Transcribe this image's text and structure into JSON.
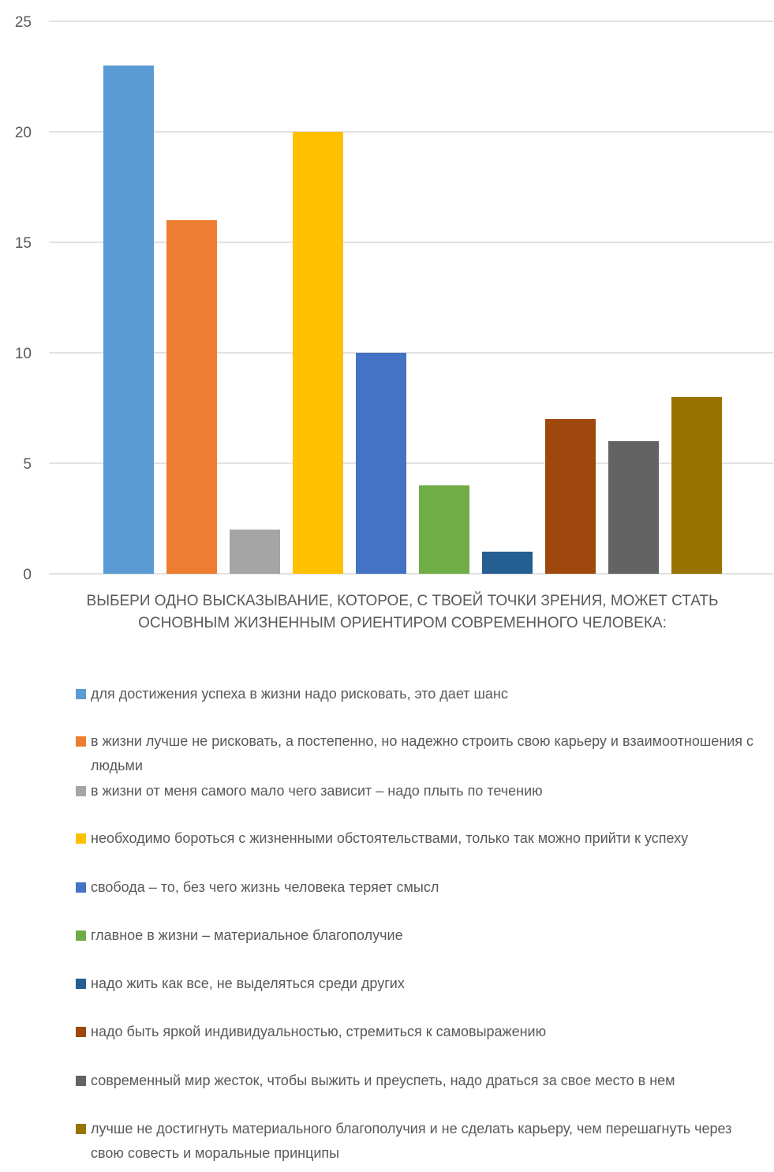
{
  "chart_data": {
    "type": "bar",
    "xlabel": "ВЫБЕРИ ОДНО ВЫСКАЗЫВАНИЕ, КОТОРОЕ, С ТВОЕЙ ТОЧКИ ЗРЕНИЯ, МОЖЕТ СТАТЬ\nОСНОВНЫМ ЖИЗНЕННЫМ ОРИЕНТИРОМ СОВРЕМЕННОГО ЧЕЛОВЕКА:",
    "ylim": [
      0,
      25
    ],
    "yticks": [
      0,
      5,
      10,
      15,
      20,
      25
    ],
    "grid": true,
    "legend_position": "bottom",
    "series": [
      {
        "name": "для достижения успеха в жизни надо рисковать, это дает шанс",
        "value": 23,
        "color": "#5B9BD5"
      },
      {
        "name": "в жизни лучше не рисковать, а постепенно, но надежно строить свою карьеру и взаимоотношения с людьми",
        "value": 16,
        "color": "#ED7D31"
      },
      {
        "name": "в жизни от меня самого мало чего зависит – надо плыть по течению",
        "value": 2,
        "color": "#A5A5A5"
      },
      {
        "name": "необходимо бороться с жизненными обстоятельствами, только так можно прийти к успеху",
        "value": 20,
        "color": "#FFC000"
      },
      {
        "name": "свобода – то, без чего жизнь человека теряет смысл",
        "value": 10,
        "color": "#4472C4"
      },
      {
        "name": "главное в жизни – материальное благополучие",
        "value": 4,
        "color": "#70AD47"
      },
      {
        "name": "надо жить как все, не выделяться среди других",
        "value": 1,
        "color": "#255E91"
      },
      {
        "name": "надо быть яркой индивидуальностью, стремиться к самовыражению",
        "value": 7,
        "color": "#9E480E"
      },
      {
        "name": "современный мир жесток, чтобы выжить и преуспеть, надо драться за свое место в нем",
        "value": 6,
        "color": "#636363"
      },
      {
        "name": "лучше не достигнуть материального благополучия и не сделать карьеру, чем перешагнуть через свою совесть и моральные принципы",
        "value": 8,
        "color": "#997300"
      }
    ]
  }
}
